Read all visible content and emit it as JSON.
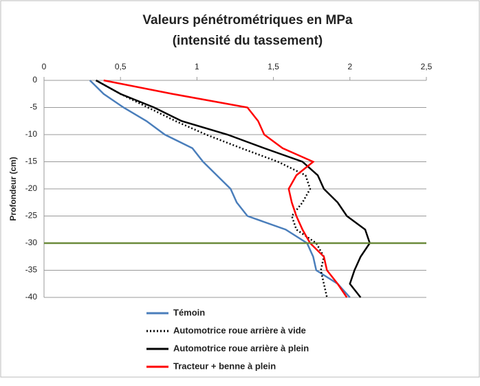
{
  "chart_data": {
    "type": "line",
    "orientation": "vertical-depth",
    "title": [
      "Valeurs pénétrométriques en MPa",
      "(intensité du tassement)"
    ],
    "y_label": "Profondeur (cm)",
    "y": [
      0,
      -2.5,
      -5,
      -7.5,
      -10,
      -12.5,
      -15,
      -17.5,
      -20,
      -22.5,
      -25,
      -27.5,
      -30,
      -32.5,
      -35,
      -37.5,
      -40
    ],
    "series": [
      {
        "name": "Témoin",
        "color": "#4a7ebb",
        "dashed": false,
        "values": [
          0.3,
          0.39,
          0.52,
          0.67,
          0.79,
          0.97,
          1.04,
          1.13,
          1.22,
          1.26,
          1.33,
          1.58,
          1.72,
          1.76,
          1.78,
          1.92,
          2.0
        ]
      },
      {
        "name": "Automotrice roue arrière à vide",
        "color": "#000000",
        "dashed": true,
        "values": [
          0.34,
          0.5,
          0.68,
          0.86,
          1.06,
          1.29,
          1.53,
          1.71,
          1.74,
          1.69,
          1.62,
          1.65,
          1.78,
          1.83,
          1.81,
          1.83,
          1.85
        ]
      },
      {
        "name": "Automotrice roue arrière à plein",
        "color": "#000000",
        "dashed": false,
        "values": [
          0.34,
          0.5,
          0.72,
          0.9,
          1.2,
          1.44,
          1.69,
          1.79,
          1.83,
          1.92,
          1.98,
          2.1,
          2.13,
          2.07,
          2.03,
          2.0,
          2.07
        ]
      },
      {
        "name": "Tracteur + benne à plein",
        "color": "#ff0000",
        "dashed": false,
        "values": [
          0.39,
          0.84,
          1.33,
          1.4,
          1.44,
          1.56,
          1.76,
          1.65,
          1.6,
          1.62,
          1.65,
          1.69,
          1.74,
          1.83,
          1.85,
          1.92,
          1.98
        ]
      }
    ],
    "xlim": [
      0,
      2.5
    ],
    "xticks": [
      0,
      {
        "value": 0.5,
        "label": "0,5"
      },
      1,
      {
        "value": 1.5,
        "label": "1,5"
      },
      2,
      {
        "value": 2.5,
        "label": "2,5"
      }
    ],
    "ylim": [
      -40,
      0
    ],
    "yticks": [
      0,
      -5,
      -10,
      -15,
      -20,
      -25,
      -30,
      -35,
      -40
    ],
    "grid": true,
    "reference_line": {
      "value": -30,
      "color": "#6a8a3a"
    },
    "legend": "bottom"
  }
}
